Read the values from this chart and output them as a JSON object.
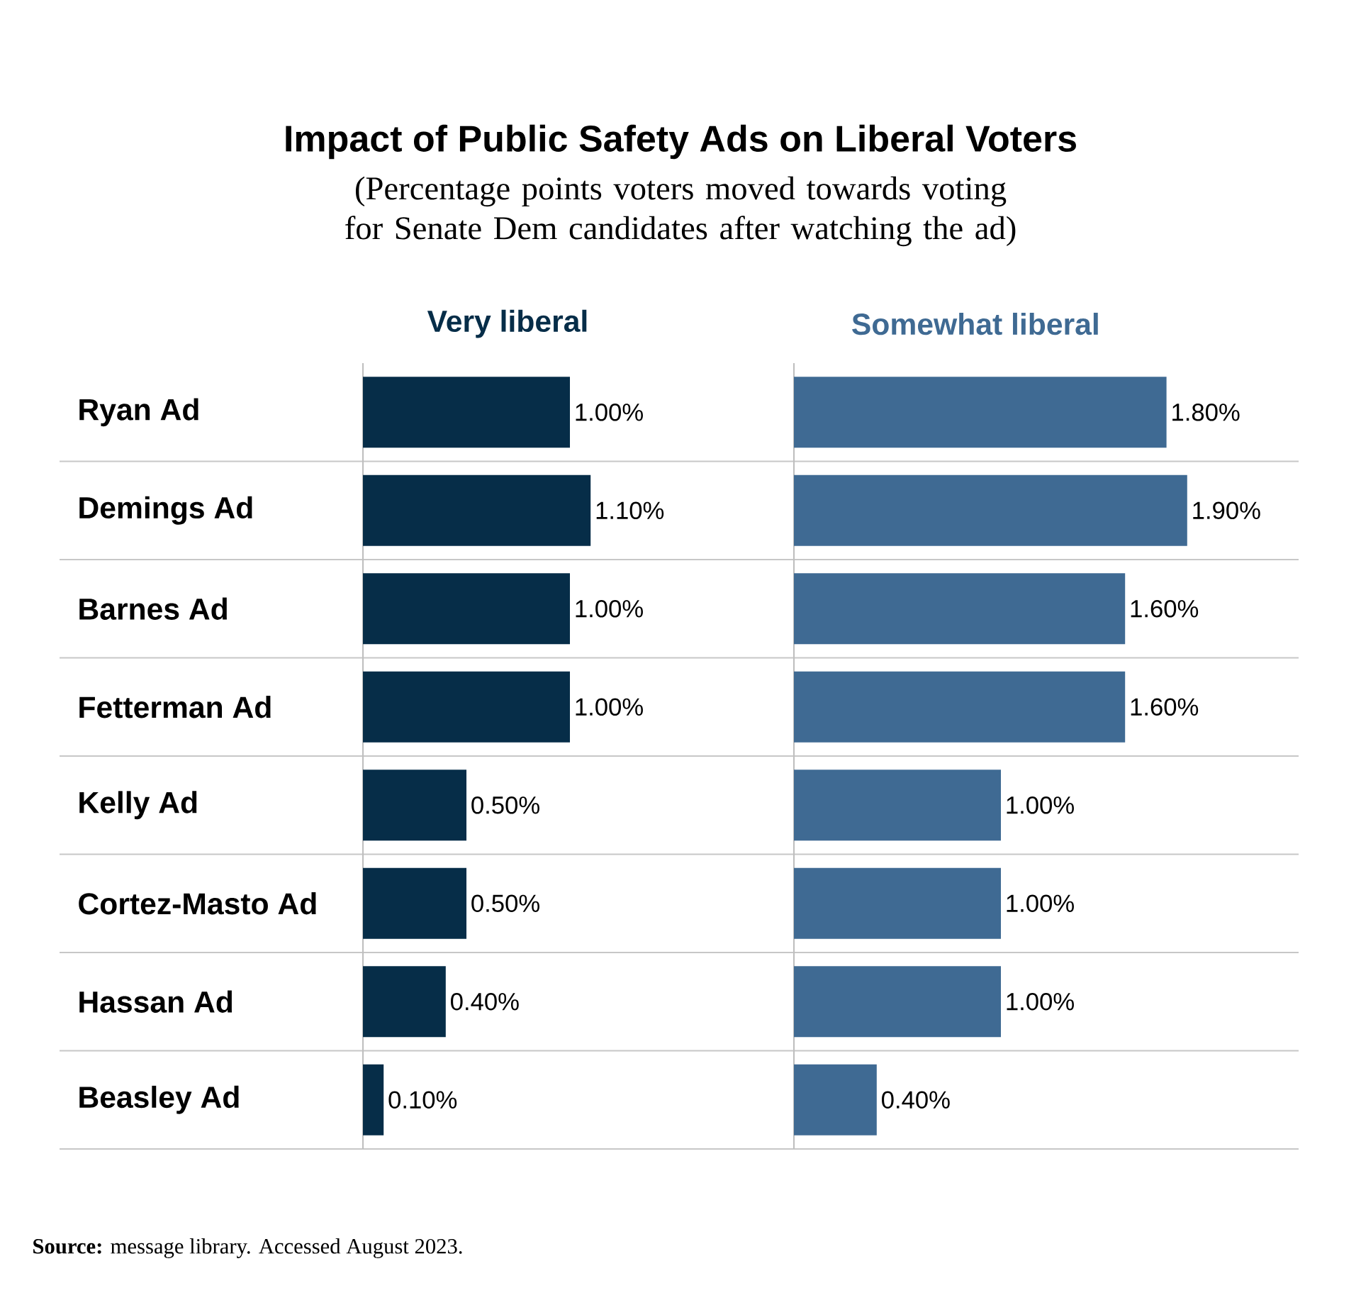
{
  "chart_data": [
    {
      "type": "bar",
      "orientation": "horizontal",
      "title": "Impact of Public Safety Ads on Liberal Voters",
      "subtitle": "(Percentage points voters moved towards voting for Senate Dem candidates after watching the ad)",
      "categories": [
        "Ryan Ad",
        "Demings Ad",
        "Barnes Ad",
        "Fetterman Ad",
        "Kelly Ad",
        "Cortez-Masto Ad",
        "Hassan Ad",
        "Beasley Ad"
      ],
      "series": [
        {
          "name": "Very liberal",
          "color": "#062d48",
          "values": [
            1.0,
            1.1,
            1.0,
            1.0,
            0.5,
            0.5,
            0.4,
            0.1
          ],
          "value_labels": [
            "1.00%",
            "1.10%",
            "1.00%",
            "1.00%",
            "0.50%",
            "0.50%",
            "0.40%",
            "0.10%"
          ]
        }
      ],
      "grid": "y",
      "tick_labels": "y",
      "annotations": [
        "**Source:** message library. Accessed August 2023."
      ]
    },
    {
      "type": "bar",
      "orientation": "horizontal",
      "categories": [
        null,
        null,
        null,
        null,
        null,
        null,
        null,
        null
      ],
      "series": [
        {
          "name": "Somewhat liberal",
          "color": "#3f6a93",
          "values": [
            1.8,
            1.9,
            1.6,
            1.6,
            1.0,
            1.0,
            1.0,
            0.4
          ],
          "value_labels": [
            "1.80%",
            "1.90%",
            "1.60%",
            "1.60%",
            "1.00%",
            "1.00%",
            "1.00%",
            "0.40%"
          ]
        }
      ],
      "grid": "y",
      "tick_labels": false
    }
  ]
}
